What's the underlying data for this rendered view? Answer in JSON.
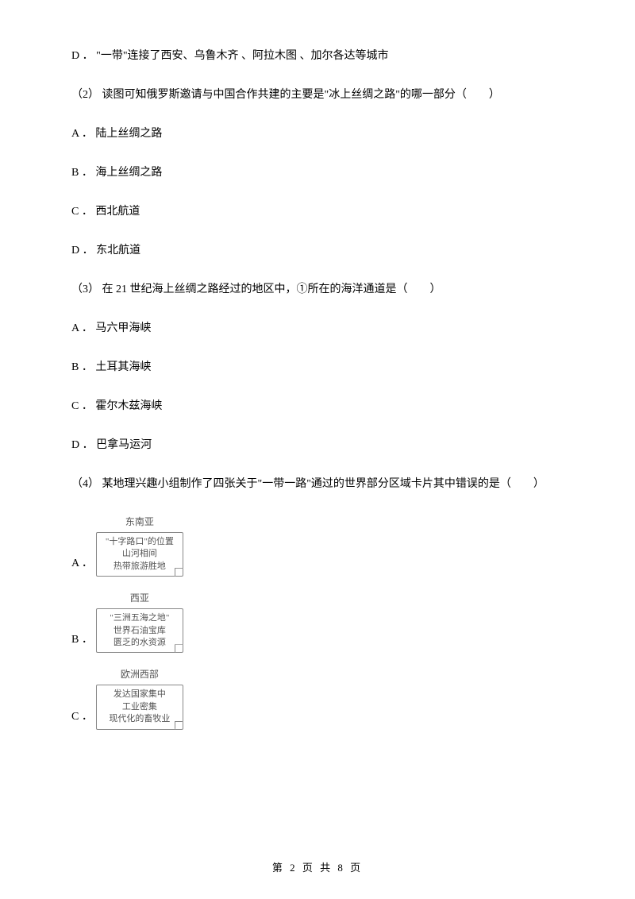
{
  "topOption": "D ． \"一带\"连接了西安、乌鲁木齐 、阿拉木图 、加尔各达等城市",
  "q2": {
    "stem": "（2） 读图可知俄罗斯邀请与中国合作共建的主要是\"冰上丝绸之路\"的哪一部分（　　）",
    "optA": "A ． 陆上丝绸之路",
    "optB": "B ． 海上丝绸之路",
    "optC": "C ． 西北航道",
    "optD": "D ． 东北航道"
  },
  "q3": {
    "stem": "（3） 在 21 世纪海上丝绸之路经过的地区中，①所在的海洋通道是（　　）",
    "optA": "A ． 马六甲海峡",
    "optB": "B ． 土耳其海峡",
    "optC": "C ． 霍尔木兹海峡",
    "optD": "D ． 巴拿马运河"
  },
  "q4": {
    "stem": "（4） 某地理兴趣小组制作了四张关于\"一带一路\"通过的世界部分区域卡片其中错误的是（　　）",
    "optA": {
      "letter": "A ．",
      "title": "东南亚",
      "line1": "\"十字路口\"的位置",
      "line2": "山河相间",
      "line3": "热带旅游胜地"
    },
    "optB": {
      "letter": "B ．",
      "title": "西亚",
      "line1": "\"三洲五海之地\"",
      "line2": "世界石油宝库",
      "line3": "匮乏的水资源"
    },
    "optC": {
      "letter": "C ．",
      "title": "欧洲西部",
      "line1": "发达国家集中",
      "line2": "工业密集",
      "line3": "现代化的畜牧业"
    }
  },
  "footer": "第 2 页 共 8 页"
}
